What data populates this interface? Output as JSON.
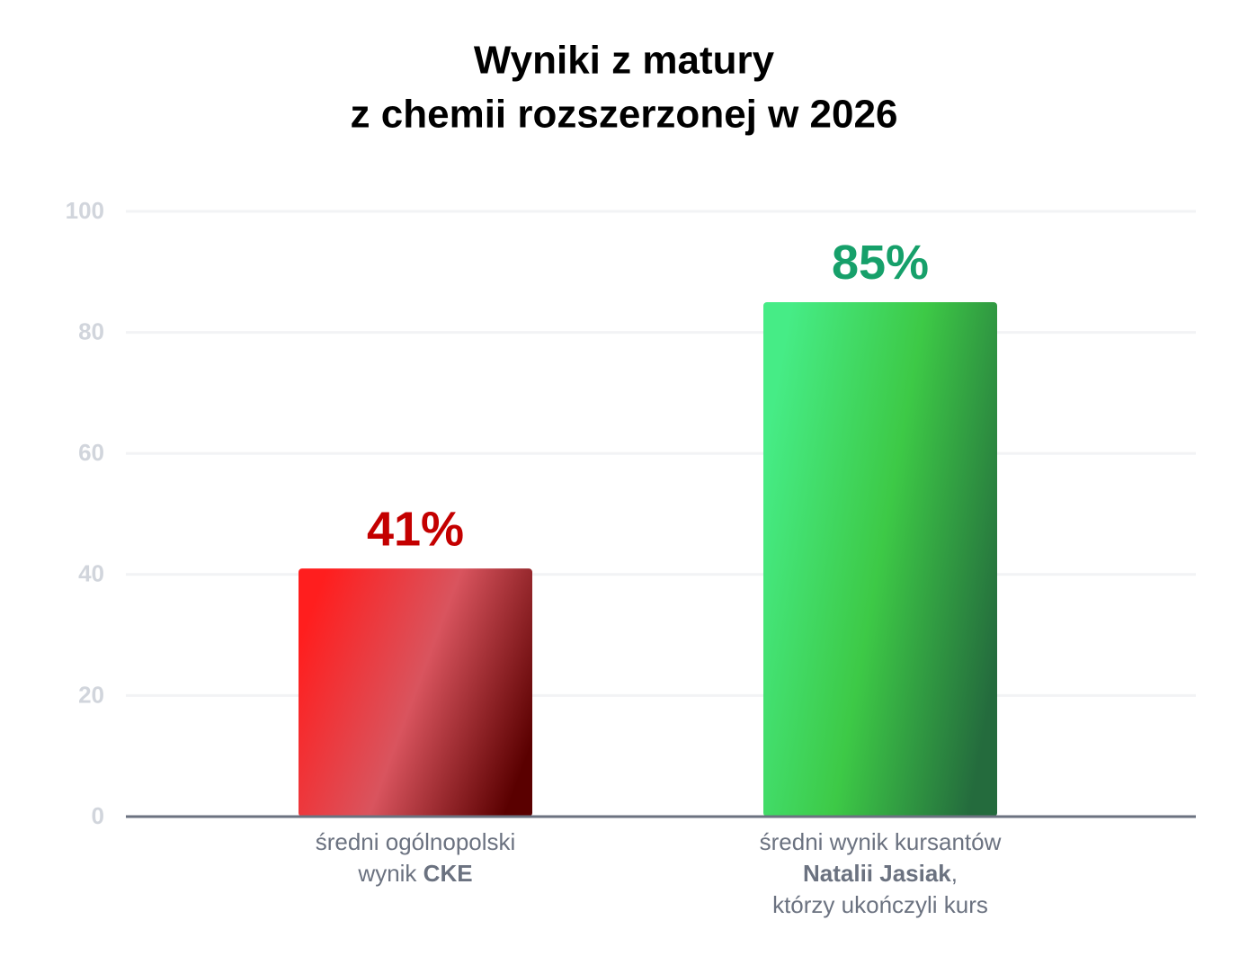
{
  "chart_data": {
    "type": "bar",
    "title": [
      "Wyniki z matury",
      "z chemii rozszerzonej w 2026"
    ],
    "categories": [
      [
        [
          "średni ogólnopolski"
        ],
        [
          "wynik ",
          {
            "bold": "CKE"
          }
        ]
      ],
      [
        [
          "średni wynik kursantów"
        ],
        [
          {
            "bold": "Natalii Jasiak"
          },
          ","
        ],
        [
          "którzy ukończyli kurs"
        ]
      ]
    ],
    "values": [
      41,
      85
    ],
    "value_labels": [
      "41%",
      "85%"
    ],
    "colors": [
      [
        "#ff1e1e",
        "#d9545e",
        "#5a0000"
      ],
      [
        "#46ec86",
        "#3dc946",
        "#246b3d"
      ]
    ],
    "value_label_colors": [
      "#c40000",
      "#16a06a"
    ],
    "ylim": [
      0,
      100
    ],
    "yticks": [
      0,
      20,
      40,
      60,
      80,
      100
    ],
    "grid": true
  }
}
